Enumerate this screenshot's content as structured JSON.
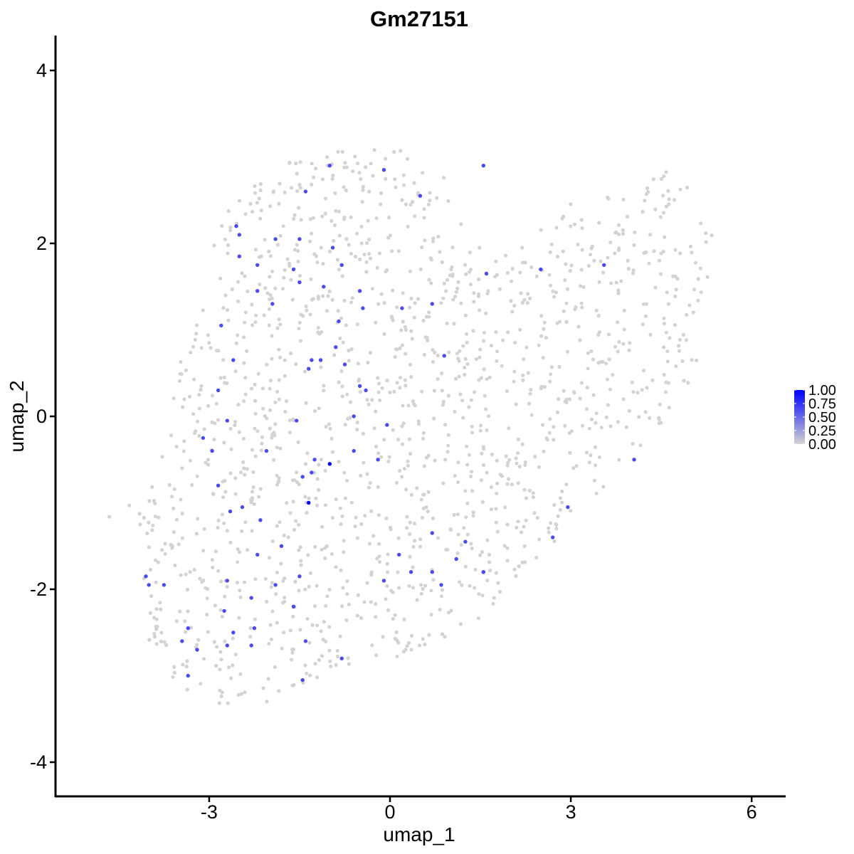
{
  "chart_data": {
    "type": "scatter",
    "title": "Gm27151",
    "xlabel": "umap_1",
    "ylabel": "umap_2",
    "xlim": [
      -5.45,
      6.55
    ],
    "ylim": [
      -4.4,
      4.4
    ],
    "xticks": [
      -3,
      0,
      3,
      6
    ],
    "yticks": [
      -4,
      -2,
      0,
      2,
      4
    ],
    "xtick_labels": [
      "-3",
      "0",
      "3",
      "6"
    ],
    "ytick_labels": [
      "-4",
      "-2",
      "0",
      "2",
      "4"
    ],
    "grid": false,
    "color_scale": {
      "low_color": "#d3d3d3",
      "high_color": "#0000ff",
      "min": 0,
      "max": 1,
      "ticks": [
        1.0,
        0.75,
        0.5,
        0.25,
        0.0
      ],
      "tick_labels": [
        "1.00",
        "0.75",
        "0.50",
        "0.25",
        "0.00"
      ],
      "legend_position": "right"
    },
    "background_points_note_value": 0,
    "expressing_points": [
      {
        "x": -1.0,
        "y": 2.9,
        "value": 0.65
      },
      {
        "x": -0.1,
        "y": 2.85,
        "value": 0.65
      },
      {
        "x": 1.55,
        "y": 2.9,
        "value": 0.65
      },
      {
        "x": -1.4,
        "y": 2.6,
        "value": 0.65
      },
      {
        "x": 0.5,
        "y": 2.55,
        "value": 0.65
      },
      {
        "x": -2.55,
        "y": 2.2,
        "value": 0.65
      },
      {
        "x": -2.5,
        "y": 2.1,
        "value": 0.65
      },
      {
        "x": -1.9,
        "y": 2.05,
        "value": 0.65
      },
      {
        "x": -1.5,
        "y": 2.05,
        "value": 0.65
      },
      {
        "x": -0.95,
        "y": 1.95,
        "value": 0.65
      },
      {
        "x": -2.5,
        "y": 1.85,
        "value": 0.65
      },
      {
        "x": -2.2,
        "y": 1.75,
        "value": 0.65
      },
      {
        "x": -0.8,
        "y": 1.75,
        "value": 0.65
      },
      {
        "x": -1.6,
        "y": 1.7,
        "value": 0.65
      },
      {
        "x": 1.6,
        "y": 1.65,
        "value": 0.65
      },
      {
        "x": 2.5,
        "y": 1.7,
        "value": 0.65
      },
      {
        "x": 3.55,
        "y": 1.75,
        "value": 0.65
      },
      {
        "x": -1.5,
        "y": 1.55,
        "value": 0.65
      },
      {
        "x": -1.1,
        "y": 1.5,
        "value": 0.65
      },
      {
        "x": -2.2,
        "y": 1.45,
        "value": 0.65
      },
      {
        "x": -0.5,
        "y": 1.45,
        "value": 0.65
      },
      {
        "x": -1.95,
        "y": 1.3,
        "value": 0.65
      },
      {
        "x": -0.45,
        "y": 1.25,
        "value": 0.65
      },
      {
        "x": 0.2,
        "y": 1.25,
        "value": 0.65
      },
      {
        "x": 0.7,
        "y": 1.3,
        "value": 0.65
      },
      {
        "x": -2.8,
        "y": 1.05,
        "value": 0.65
      },
      {
        "x": -0.85,
        "y": 1.1,
        "value": 0.65
      },
      {
        "x": -0.9,
        "y": 0.8,
        "value": 0.65
      },
      {
        "x": 0.9,
        "y": 0.7,
        "value": 0.65
      },
      {
        "x": -2.6,
        "y": 0.65,
        "value": 0.65
      },
      {
        "x": -1.3,
        "y": 0.65,
        "value": 0.65
      },
      {
        "x": -1.15,
        "y": 0.65,
        "value": 0.65
      },
      {
        "x": -0.75,
        "y": 0.6,
        "value": 0.65
      },
      {
        "x": -1.35,
        "y": 0.55,
        "value": 0.65
      },
      {
        "x": -0.5,
        "y": 0.35,
        "value": 0.65
      },
      {
        "x": -0.4,
        "y": 0.3,
        "value": 0.65
      },
      {
        "x": -2.85,
        "y": 0.3,
        "value": 0.65
      },
      {
        "x": -0.6,
        "y": 0.0,
        "value": 0.65
      },
      {
        "x": -2.7,
        "y": -0.05,
        "value": 0.65
      },
      {
        "x": -1.55,
        "y": -0.05,
        "value": 0.65
      },
      {
        "x": -0.05,
        "y": -0.1,
        "value": 0.65
      },
      {
        "x": -3.1,
        "y": -0.25,
        "value": 0.65
      },
      {
        "x": -2.95,
        "y": -0.4,
        "value": 0.65
      },
      {
        "x": -2.05,
        "y": -0.4,
        "value": 0.65
      },
      {
        "x": -0.6,
        "y": -0.4,
        "value": 0.65
      },
      {
        "x": -0.2,
        "y": -0.5,
        "value": 0.65
      },
      {
        "x": 4.05,
        "y": -0.5,
        "value": 0.65
      },
      {
        "x": -1.25,
        "y": -0.5,
        "value": 0.65
      },
      {
        "x": -1.3,
        "y": -0.65,
        "value": 0.65
      },
      {
        "x": -1.45,
        "y": -0.7,
        "value": 0.65
      },
      {
        "x": -1.0,
        "y": -0.55,
        "value": 1.0
      },
      {
        "x": -1.35,
        "y": -1.0,
        "value": 1.0
      },
      {
        "x": -2.85,
        "y": -0.8,
        "value": 0.65
      },
      {
        "x": -2.45,
        "y": -1.05,
        "value": 0.65
      },
      {
        "x": -2.65,
        "y": -1.1,
        "value": 0.65
      },
      {
        "x": 2.95,
        "y": -1.05,
        "value": 0.65
      },
      {
        "x": -2.15,
        "y": -1.2,
        "value": 0.65
      },
      {
        "x": 0.7,
        "y": -1.35,
        "value": 0.65
      },
      {
        "x": 2.7,
        "y": -1.4,
        "value": 0.65
      },
      {
        "x": 1.25,
        "y": -1.45,
        "value": 0.65
      },
      {
        "x": -1.8,
        "y": -1.5,
        "value": 0.65
      },
      {
        "x": -2.2,
        "y": -1.6,
        "value": 0.65
      },
      {
        "x": 0.15,
        "y": -1.6,
        "value": 0.65
      },
      {
        "x": 1.1,
        "y": -1.65,
        "value": 0.65
      },
      {
        "x": 1.55,
        "y": -1.8,
        "value": 0.65
      },
      {
        "x": 0.35,
        "y": -1.8,
        "value": 0.65
      },
      {
        "x": 0.7,
        "y": -1.8,
        "value": 0.65
      },
      {
        "x": -4.05,
        "y": -1.85,
        "value": 0.65
      },
      {
        "x": -1.5,
        "y": -1.85,
        "value": 0.65
      },
      {
        "x": -2.7,
        "y": -1.9,
        "value": 0.65
      },
      {
        "x": -0.1,
        "y": -1.9,
        "value": 0.65
      },
      {
        "x": -4.0,
        "y": -1.95,
        "value": 0.65
      },
      {
        "x": -3.75,
        "y": -1.95,
        "value": 0.65
      },
      {
        "x": -1.9,
        "y": -1.95,
        "value": 0.65
      },
      {
        "x": 0.85,
        "y": -1.95,
        "value": 0.65
      },
      {
        "x": -2.3,
        "y": -2.1,
        "value": 0.65
      },
      {
        "x": -1.6,
        "y": -2.2,
        "value": 0.65
      },
      {
        "x": -2.75,
        "y": -2.25,
        "value": 0.65
      },
      {
        "x": -3.35,
        "y": -2.45,
        "value": 0.65
      },
      {
        "x": -2.25,
        "y": -2.45,
        "value": 0.65
      },
      {
        "x": -2.6,
        "y": -2.5,
        "value": 0.65
      },
      {
        "x": -3.45,
        "y": -2.6,
        "value": 0.65
      },
      {
        "x": -2.7,
        "y": -2.65,
        "value": 0.65
      },
      {
        "x": -2.3,
        "y": -2.65,
        "value": 0.65
      },
      {
        "x": -1.4,
        "y": -2.6,
        "value": 0.65
      },
      {
        "x": -3.2,
        "y": -2.7,
        "value": 0.65
      },
      {
        "x": -0.8,
        "y": -2.8,
        "value": 0.65
      },
      {
        "x": -3.35,
        "y": -3.0,
        "value": 0.65
      },
      {
        "x": -1.45,
        "y": -3.05,
        "value": 0.65
      }
    ]
  }
}
